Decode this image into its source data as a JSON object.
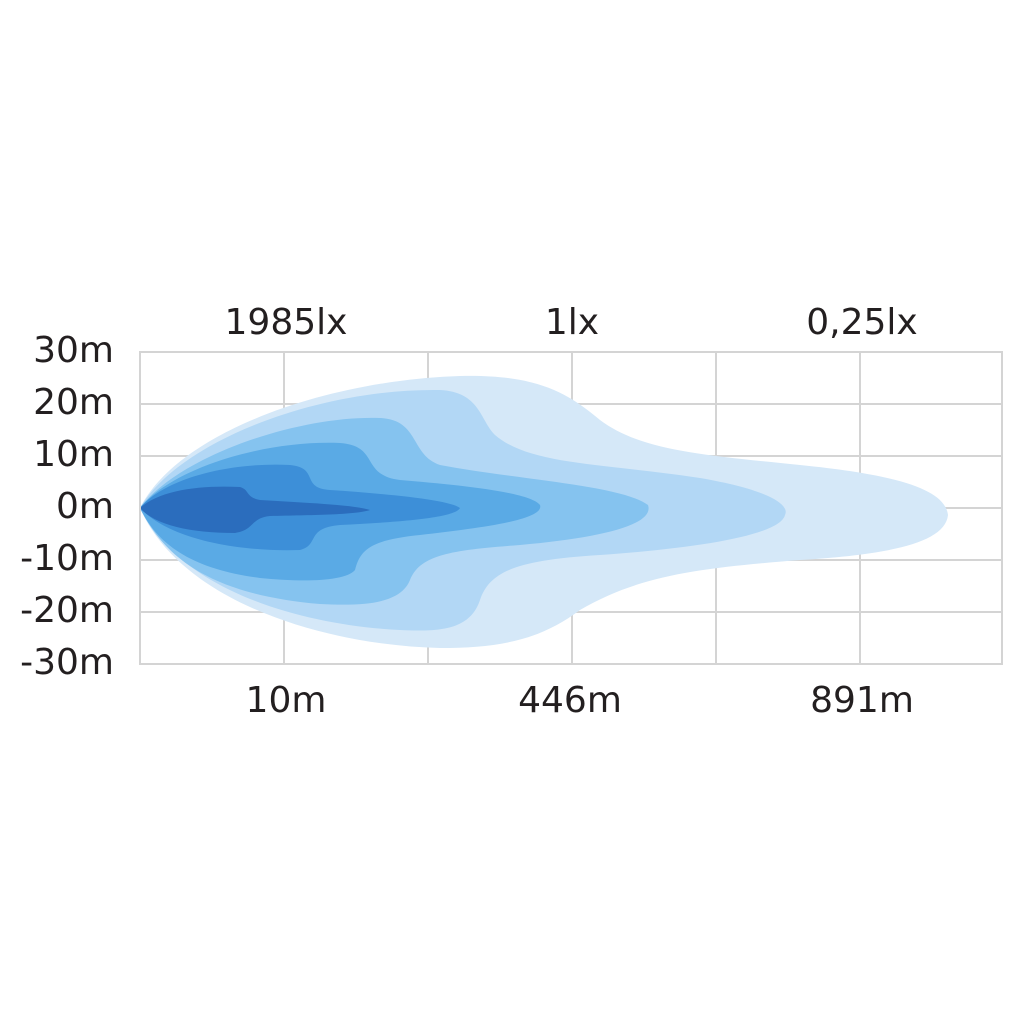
{
  "y_axis": {
    "labels": [
      "30m",
      "20m",
      "10m",
      "0m",
      "-10m",
      "-20m",
      "-30m"
    ]
  },
  "top_labels": [
    "1985lx",
    "1lx",
    "0,25lx"
  ],
  "bottom_labels": [
    "10m",
    "446m",
    "891m"
  ]
}
